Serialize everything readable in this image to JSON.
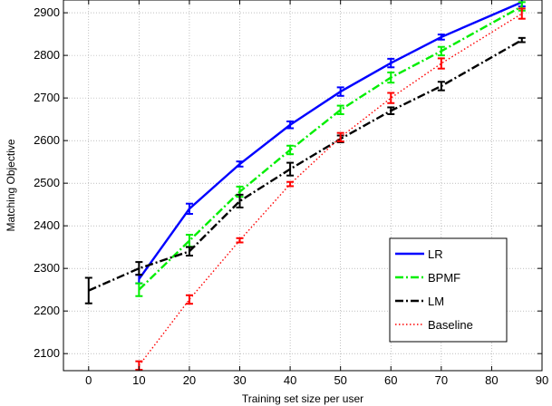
{
  "chart_data": {
    "type": "line",
    "title": "",
    "xlabel": "Training set size per user",
    "ylabel": "Matching Objective",
    "xlim": [
      -5,
      90
    ],
    "ylim": [
      2060,
      2930
    ],
    "xticks": [
      0,
      10,
      20,
      30,
      40,
      50,
      60,
      70,
      80,
      90
    ],
    "yticks": [
      2100,
      2200,
      2300,
      2400,
      2500,
      2600,
      2700,
      2800,
      2900
    ],
    "grid": true,
    "legend_position": "bottom-right",
    "series": [
      {
        "name": "LR",
        "color": "#0000ff",
        "style": "solid",
        "points": [
          {
            "x": 10,
            "y": 2275,
            "err": 10
          },
          {
            "x": 20,
            "y": 2440,
            "err": 12
          },
          {
            "x": 30,
            "y": 2545,
            "err": 6
          },
          {
            "x": 40,
            "y": 2637,
            "err": 8
          },
          {
            "x": 50,
            "y": 2715,
            "err": 10
          },
          {
            "x": 60,
            "y": 2782,
            "err": 10
          },
          {
            "x": 70,
            "y": 2843,
            "err": 6
          },
          {
            "x": 86,
            "y": 2925,
            "err": 10
          }
        ]
      },
      {
        "name": "BPMF",
        "color": "#00ee00",
        "style": "dashdot",
        "points": [
          {
            "x": 10,
            "y": 2250,
            "err": 15
          },
          {
            "x": 20,
            "y": 2365,
            "err": 14
          },
          {
            "x": 30,
            "y": 2480,
            "err": 12
          },
          {
            "x": 40,
            "y": 2578,
            "err": 10
          },
          {
            "x": 50,
            "y": 2672,
            "err": 10
          },
          {
            "x": 60,
            "y": 2748,
            "err": 12
          },
          {
            "x": 70,
            "y": 2810,
            "err": 10
          },
          {
            "x": 86,
            "y": 2915,
            "err": 10
          }
        ]
      },
      {
        "name": "LM",
        "color": "#000000",
        "style": "dashdot",
        "points": [
          {
            "x": 0,
            "y": 2248,
            "err": 30
          },
          {
            "x": 10,
            "y": 2300,
            "err": 15
          },
          {
            "x": 20,
            "y": 2340,
            "err": 10
          },
          {
            "x": 30,
            "y": 2458,
            "err": 15
          },
          {
            "x": 40,
            "y": 2533,
            "err": 15
          },
          {
            "x": 50,
            "y": 2604,
            "err": 8
          },
          {
            "x": 60,
            "y": 2670,
            "err": 8
          },
          {
            "x": 70,
            "y": 2728,
            "err": 10
          },
          {
            "x": 86,
            "y": 2836,
            "err": 5
          }
        ]
      },
      {
        "name": "Baseline",
        "color": "#ff0000",
        "style": "dotted",
        "points": [
          {
            "x": 10,
            "y": 2072,
            "err": 10
          },
          {
            "x": 20,
            "y": 2227,
            "err": 10
          },
          {
            "x": 30,
            "y": 2366,
            "err": 5
          },
          {
            "x": 40,
            "y": 2498,
            "err": 5
          },
          {
            "x": 50,
            "y": 2608,
            "err": 10
          },
          {
            "x": 60,
            "y": 2700,
            "err": 12
          },
          {
            "x": 70,
            "y": 2781,
            "err": 12
          },
          {
            "x": 86,
            "y": 2898,
            "err": 12
          }
        ]
      }
    ]
  }
}
